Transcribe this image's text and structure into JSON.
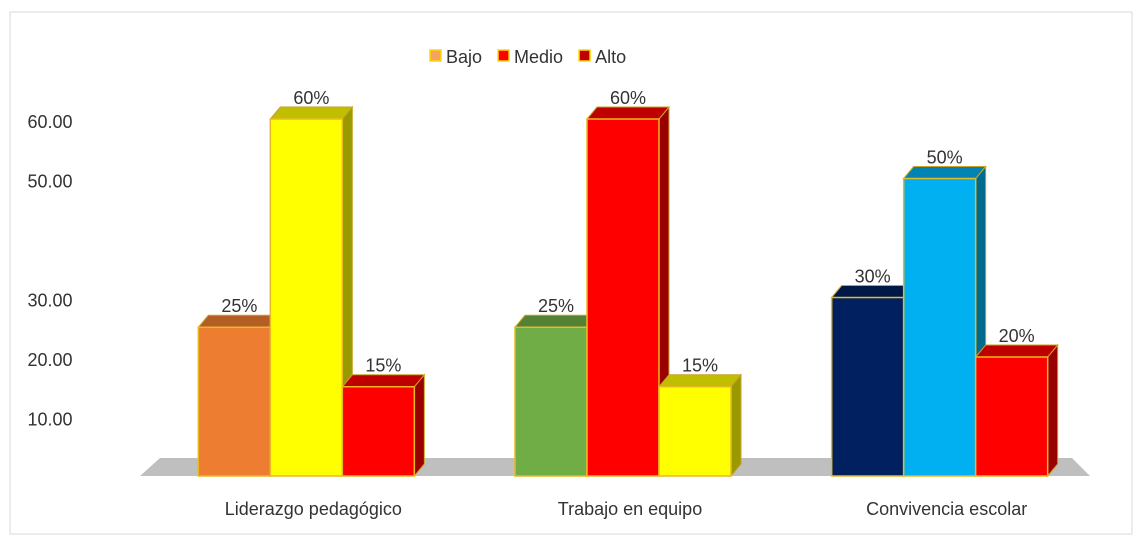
{
  "chart_data": {
    "type": "bar3d",
    "categories": [
      "Liderazgo pedagógico",
      "Trabajo en equipo",
      "Convivencia escolar"
    ],
    "series": [
      {
        "name": "Bajo",
        "color": "#f4a460",
        "colors": [
          "#ed7d31",
          "#70ad47",
          "#002060"
        ],
        "values": [
          25,
          25,
          30
        ],
        "value_labels": [
          "25%",
          "25%",
          "30%"
        ]
      },
      {
        "name": "Medio",
        "color": "#ff0000",
        "colors": [
          "#ffff00",
          "#ff0000",
          "#00b0f0"
        ],
        "values": [
          60,
          60,
          50
        ],
        "value_labels": [
          "60%",
          "60%",
          "50%"
        ]
      },
      {
        "name": "Alto",
        "color": "#c00000",
        "colors": [
          "#ff0000",
          "#ffff00",
          "#ff0000"
        ],
        "values": [
          15,
          15,
          20
        ],
        "value_labels": [
          "15%",
          "15%",
          "20%"
        ]
      }
    ],
    "ylim": [
      0,
      60
    ],
    "yticks": [
      {
        "value": 10,
        "label": "10.00"
      },
      {
        "value": 20,
        "label": "20.00"
      },
      {
        "value": 30,
        "label": "30.00"
      },
      {
        "value": 50,
        "label": "50.00"
      },
      {
        "value": 60,
        "label": "60.00"
      }
    ],
    "grid": false
  }
}
